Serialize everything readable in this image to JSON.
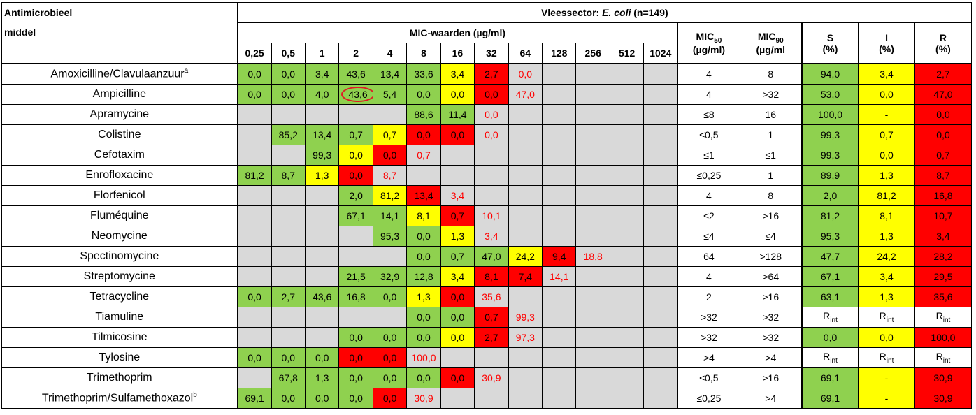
{
  "header": {
    "antimicrobial_line1": "Antimicrobieel",
    "antimicrobial_line2": "middel",
    "sector_prefix": "Vleessector: ",
    "sector_species": "E. coli",
    "sector_suffix": " (n=149)",
    "mic_values_label": "MIC-waarden (µg/ml)",
    "mic50_label": "MIC",
    "mic50_sub": "50",
    "mic90_label": "MIC",
    "mic90_sub": "90",
    "mic_unit": "(µg/ml)",
    "mic_unit2": "(µg/ml",
    "s_label": "S",
    "i_label": "I",
    "r_label": "R",
    "pct": "(%)",
    "concentrations": [
      "0,25",
      "0,5",
      "1",
      "2",
      "4",
      "8",
      "16",
      "32",
      "64",
      "128",
      "256",
      "512",
      "1024"
    ]
  },
  "rows": [
    {
      "name": "Amoxicilline/Clavulaanzuur",
      "sup": "a",
      "cells": [
        [
          "0,0",
          "g"
        ],
        [
          "0,0",
          "g"
        ],
        [
          "3,4",
          "g"
        ],
        [
          "43,6",
          "g"
        ],
        [
          "13,4",
          "g"
        ],
        [
          "33,6",
          "g"
        ],
        [
          "3,4",
          "y"
        ],
        [
          "2,7",
          "r"
        ],
        [
          "0,0",
          "rt"
        ],
        [
          "",
          "gr"
        ],
        [
          "",
          "gr"
        ],
        [
          "",
          "gr"
        ],
        [
          "",
          "gr"
        ]
      ],
      "mic50": "4",
      "mic90": "8",
      "s": "94,0",
      "i": "3,4",
      "r": "2,7"
    },
    {
      "name": "Ampicilline",
      "sup": "",
      "cells": [
        [
          "0,0",
          "g"
        ],
        [
          "0,0",
          "g"
        ],
        [
          "4,0",
          "g"
        ],
        [
          "43,6",
          "gc"
        ],
        [
          "5,4",
          "g"
        ],
        [
          "0,0",
          "g"
        ],
        [
          "0,0",
          "y"
        ],
        [
          "0,0",
          "r"
        ],
        [
          "47,0",
          "rt"
        ],
        [
          "",
          "gr"
        ],
        [
          "",
          "gr"
        ],
        [
          "",
          "gr"
        ],
        [
          "",
          "gr"
        ]
      ],
      "mic50": "4",
      "mic90": ">32",
      "s": "53,0",
      "i": "0,0",
      "r": "47,0"
    },
    {
      "name": "Apramycine",
      "sup": "",
      "cells": [
        [
          "",
          "gr"
        ],
        [
          "",
          "gr"
        ],
        [
          "",
          "gr"
        ],
        [
          "",
          "gr"
        ],
        [
          "",
          "gr"
        ],
        [
          "88,6",
          "g"
        ],
        [
          "11,4",
          "g"
        ],
        [
          "0,0",
          "rt"
        ],
        [
          "",
          "gr"
        ],
        [
          "",
          "gr"
        ],
        [
          "",
          "gr"
        ],
        [
          "",
          "gr"
        ],
        [
          "",
          "gr"
        ]
      ],
      "mic50": "≤8",
      "mic90": "16",
      "s": "100,0",
      "i": "-",
      "r": "0,0"
    },
    {
      "name": "Colistine",
      "sup": "",
      "cells": [
        [
          "",
          "gr"
        ],
        [
          "85,2",
          "g"
        ],
        [
          "13,4",
          "g"
        ],
        [
          "0,7",
          "g"
        ],
        [
          "0,7",
          "y"
        ],
        [
          "0,0",
          "r"
        ],
        [
          "0,0",
          "r"
        ],
        [
          "0,0",
          "rt"
        ],
        [
          "",
          "gr"
        ],
        [
          "",
          "gr"
        ],
        [
          "",
          "gr"
        ],
        [
          "",
          "gr"
        ],
        [
          "",
          "gr"
        ]
      ],
      "mic50": "≤0,5",
      "mic90": "1",
      "s": "99,3",
      "i": "0,7",
      "r": "0,0"
    },
    {
      "name": "Cefotaxim",
      "sup": "",
      "cells": [
        [
          "",
          "gr"
        ],
        [
          "",
          "gr"
        ],
        [
          "99,3",
          "g"
        ],
        [
          "0,0",
          "y"
        ],
        [
          "0,0",
          "r"
        ],
        [
          "0,7",
          "rt"
        ],
        [
          "",
          "gr"
        ],
        [
          "",
          "gr"
        ],
        [
          "",
          "gr"
        ],
        [
          "",
          "gr"
        ],
        [
          "",
          "gr"
        ],
        [
          "",
          "gr"
        ],
        [
          "",
          "gr"
        ]
      ],
      "mic50": "≤1",
      "mic90": "≤1",
      "s": "99,3",
      "i": "0,0",
      "r": "0,7"
    },
    {
      "name": "Enrofloxacine",
      "sup": "",
      "cells": [
        [
          "81,2",
          "g"
        ],
        [
          "8,7",
          "g"
        ],
        [
          "1,3",
          "y"
        ],
        [
          "0,0",
          "r"
        ],
        [
          "8,7",
          "rt"
        ],
        [
          "",
          "gr"
        ],
        [
          "",
          "gr"
        ],
        [
          "",
          "gr"
        ],
        [
          "",
          "gr"
        ],
        [
          "",
          "gr"
        ],
        [
          "",
          "gr"
        ],
        [
          "",
          "gr"
        ],
        [
          "",
          "gr"
        ]
      ],
      "mic50": "≤0,25",
      "mic90": "1",
      "s": "89,9",
      "i": "1,3",
      "r": "8,7"
    },
    {
      "name": "Florfenicol",
      "sup": "",
      "cells": [
        [
          "",
          "gr"
        ],
        [
          "",
          "gr"
        ],
        [
          "",
          "gr"
        ],
        [
          "2,0",
          "g"
        ],
        [
          "81,2",
          "y"
        ],
        [
          "13,4",
          "r"
        ],
        [
          "3,4",
          "rt"
        ],
        [
          "",
          "gr"
        ],
        [
          "",
          "gr"
        ],
        [
          "",
          "gr"
        ],
        [
          "",
          "gr"
        ],
        [
          "",
          "gr"
        ],
        [
          "",
          "gr"
        ]
      ],
      "mic50": "4",
      "mic90": "8",
      "s": "2,0",
      "i": "81,2",
      "r": "16,8"
    },
    {
      "name": "Fluméquine",
      "sup": "",
      "cells": [
        [
          "",
          "gr"
        ],
        [
          "",
          "gr"
        ],
        [
          "",
          "gr"
        ],
        [
          "67,1",
          "g"
        ],
        [
          "14,1",
          "g"
        ],
        [
          "8,1",
          "y"
        ],
        [
          "0,7",
          "r"
        ],
        [
          "10,1",
          "rt"
        ],
        [
          "",
          "gr"
        ],
        [
          "",
          "gr"
        ],
        [
          "",
          "gr"
        ],
        [
          "",
          "gr"
        ],
        [
          "",
          "gr"
        ]
      ],
      "mic50": "≤2",
      "mic90": ">16",
      "s": "81,2",
      "i": "8,1",
      "r": "10,7"
    },
    {
      "name": "Neomycine",
      "sup": "",
      "cells": [
        [
          "",
          "gr"
        ],
        [
          "",
          "gr"
        ],
        [
          "",
          "gr"
        ],
        [
          "",
          "gr"
        ],
        [
          "95,3",
          "g"
        ],
        [
          "0,0",
          "g"
        ],
        [
          "1,3",
          "y"
        ],
        [
          "3,4",
          "rt"
        ],
        [
          "",
          "gr"
        ],
        [
          "",
          "gr"
        ],
        [
          "",
          "gr"
        ],
        [
          "",
          "gr"
        ],
        [
          "",
          "gr"
        ]
      ],
      "mic50": "≤4",
      "mic90": "≤4",
      "s": "95,3",
      "i": "1,3",
      "r": "3,4"
    },
    {
      "name": "Spectinomycine",
      "sup": "",
      "cells": [
        [
          "",
          "gr"
        ],
        [
          "",
          "gr"
        ],
        [
          "",
          "gr"
        ],
        [
          "",
          "gr"
        ],
        [
          "",
          "gr"
        ],
        [
          "0,0",
          "g"
        ],
        [
          "0,7",
          "g"
        ],
        [
          "47,0",
          "g"
        ],
        [
          "24,2",
          "y"
        ],
        [
          "9,4",
          "r"
        ],
        [
          "18,8",
          "rt"
        ],
        [
          "",
          "gr"
        ],
        [
          "",
          "gr"
        ]
      ],
      "mic50": "64",
      "mic90": ">128",
      "s": "47,7",
      "i": "24,2",
      "r": "28,2"
    },
    {
      "name": "Streptomycine",
      "sup": "",
      "cells": [
        [
          "",
          "gr"
        ],
        [
          "",
          "gr"
        ],
        [
          "",
          "gr"
        ],
        [
          "21,5",
          "g"
        ],
        [
          "32,9",
          "g"
        ],
        [
          "12,8",
          "g"
        ],
        [
          "3,4",
          "y"
        ],
        [
          "8,1",
          "r"
        ],
        [
          "7,4",
          "r"
        ],
        [
          "14,1",
          "rt"
        ],
        [
          "",
          "gr"
        ],
        [
          "",
          "gr"
        ],
        [
          "",
          "gr"
        ]
      ],
      "mic50": "4",
      "mic90": ">64",
      "s": "67,1",
      "i": "3,4",
      "r": "29,5"
    },
    {
      "name": "Tetracycline",
      "sup": "",
      "cells": [
        [
          "0,0",
          "g"
        ],
        [
          "2,7",
          "g"
        ],
        [
          "43,6",
          "g"
        ],
        [
          "16,8",
          "g"
        ],
        [
          "0,0",
          "g"
        ],
        [
          "1,3",
          "y"
        ],
        [
          "0,0",
          "r"
        ],
        [
          "35,6",
          "rt"
        ],
        [
          "",
          "gr"
        ],
        [
          "",
          "gr"
        ],
        [
          "",
          "gr"
        ],
        [
          "",
          "gr"
        ],
        [
          "",
          "gr"
        ]
      ],
      "mic50": "2",
      "mic90": ">16",
      "s": "63,1",
      "i": "1,3",
      "r": "35,6"
    },
    {
      "name": "Tiamuline",
      "sup": "",
      "cells": [
        [
          "",
          "gr"
        ],
        [
          "",
          "gr"
        ],
        [
          "",
          "gr"
        ],
        [
          "",
          "gr"
        ],
        [
          "",
          "gr"
        ],
        [
          "0,0",
          "g"
        ],
        [
          "0,0",
          "g"
        ],
        [
          "0,7",
          "r"
        ],
        [
          "99,3",
          "rt"
        ],
        [
          "",
          "gr"
        ],
        [
          "",
          "gr"
        ],
        [
          "",
          "gr"
        ],
        [
          "",
          "gr"
        ]
      ],
      "mic50": ">32",
      "mic90": ">32",
      "s": "Rint",
      "i": "Rint",
      "r": "Rint"
    },
    {
      "name": "Tilmicosine",
      "sup": "",
      "cells": [
        [
          "",
          "gr"
        ],
        [
          "",
          "gr"
        ],
        [
          "",
          "gr"
        ],
        [
          "0,0",
          "g"
        ],
        [
          "0,0",
          "g"
        ],
        [
          "0,0",
          "g"
        ],
        [
          "0,0",
          "y"
        ],
        [
          "2,7",
          "r"
        ],
        [
          "97,3",
          "rt"
        ],
        [
          "",
          "gr"
        ],
        [
          "",
          "gr"
        ],
        [
          "",
          "gr"
        ],
        [
          "",
          "gr"
        ]
      ],
      "mic50": ">32",
      "mic90": ">32",
      "s": "0,0",
      "i": "0,0",
      "r": "100,0"
    },
    {
      "name": "Tylosine",
      "sup": "",
      "cells": [
        [
          "0,0",
          "g"
        ],
        [
          "0,0",
          "g"
        ],
        [
          "0,0",
          "g"
        ],
        [
          "0,0",
          "r"
        ],
        [
          "0,0",
          "r"
        ],
        [
          "100,0",
          "rt"
        ],
        [
          "",
          "gr"
        ],
        [
          "",
          "gr"
        ],
        [
          "",
          "gr"
        ],
        [
          "",
          "gr"
        ],
        [
          "",
          "gr"
        ],
        [
          "",
          "gr"
        ],
        [
          "",
          "gr"
        ]
      ],
      "mic50": ">4",
      "mic90": ">4",
      "s": "Rint",
      "i": "Rint",
      "r": "Rint"
    },
    {
      "name": "Trimethoprim",
      "sup": "",
      "cells": [
        [
          "",
          "gr"
        ],
        [
          "67,8",
          "g"
        ],
        [
          "1,3",
          "g"
        ],
        [
          "0,0",
          "g"
        ],
        [
          "0,0",
          "g"
        ],
        [
          "0,0",
          "g"
        ],
        [
          "0,0",
          "r"
        ],
        [
          "30,9",
          "rt"
        ],
        [
          "",
          "gr"
        ],
        [
          "",
          "gr"
        ],
        [
          "",
          "gr"
        ],
        [
          "",
          "gr"
        ],
        [
          "",
          "gr"
        ]
      ],
      "mic50": "≤0,5",
      "mic90": ">16",
      "s": "69,1",
      "i": "-",
      "r": "30,9"
    },
    {
      "name": "Trimethoprim/Sulfamethoxazol",
      "sup": "b",
      "cells": [
        [
          "69,1",
          "g"
        ],
        [
          "0,0",
          "g"
        ],
        [
          "0,0",
          "g"
        ],
        [
          "0,0",
          "g"
        ],
        [
          "0,0",
          "r"
        ],
        [
          "30,9",
          "rt"
        ],
        [
          "",
          "gr"
        ],
        [
          "",
          "gr"
        ],
        [
          "",
          "gr"
        ],
        [
          "",
          "gr"
        ],
        [
          "",
          "gr"
        ],
        [
          "",
          "gr"
        ],
        [
          "",
          "gr"
        ]
      ],
      "mic50": "≤0,25",
      "mic90": ">4",
      "s": "69,1",
      "i": "-",
      "r": "30,9"
    }
  ],
  "colors": {
    "green": "#8fd14f",
    "yellow": "#ffff00",
    "red": "#ff0000",
    "grey": "#d9d9d9",
    "circle": "#e01b24"
  }
}
